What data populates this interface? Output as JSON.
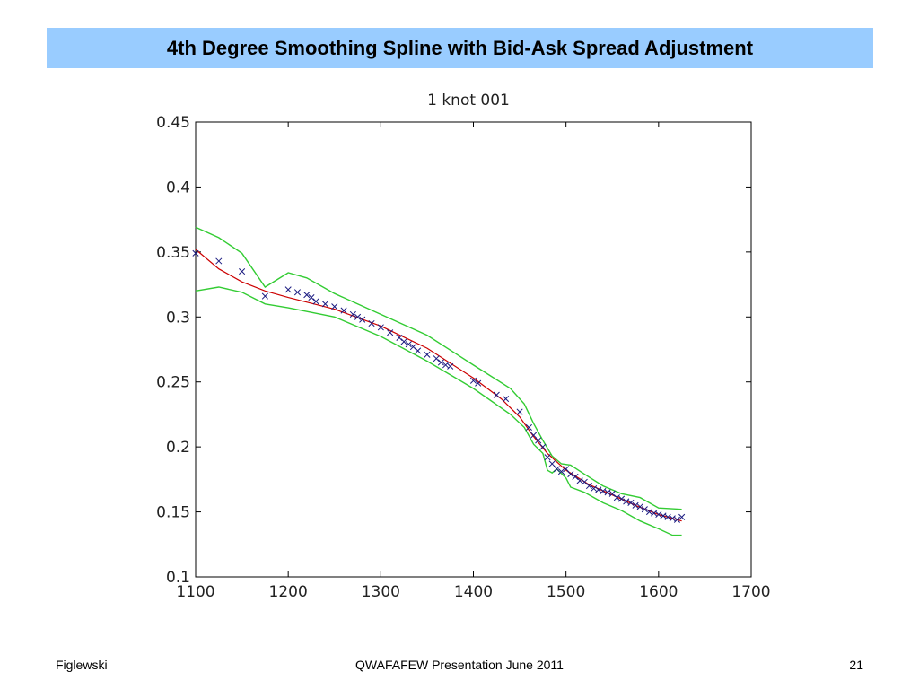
{
  "slide": {
    "title": "4th Degree Smoothing Spline with Bid-Ask Spread Adjustment",
    "footer_left": "Figlewski",
    "footer_center": "QWAFAFEW Presentation  June 2011",
    "footer_right": "21"
  },
  "colors": {
    "banner": "#99ccff",
    "fit": "#cc0000",
    "bands": "#33cc33",
    "markers": "#1a1a80"
  },
  "chart_data": {
    "type": "scatter",
    "title": "1 knot 001",
    "xlabel": "",
    "ylabel": "",
    "xlim": [
      1100,
      1700
    ],
    "ylim": [
      0.1,
      0.45
    ],
    "grid": false,
    "xticks": [
      "1100",
      "1200",
      "1300",
      "1400",
      "1500",
      "1600",
      "1700"
    ],
    "yticks": [
      "0.1",
      "0.15",
      "0.2",
      "0.25",
      "0.3",
      "0.35",
      "0.4",
      "0.45"
    ],
    "series": [
      {
        "kind": "markers",
        "marker": "x",
        "x": [
          1100,
          1125,
          1150,
          1175,
          1200,
          1210,
          1220,
          1225,
          1230,
          1240,
          1250,
          1260,
          1270,
          1275,
          1280,
          1290,
          1300,
          1310,
          1320,
          1325,
          1330,
          1335,
          1340,
          1350,
          1360,
          1365,
          1370,
          1375,
          1400,
          1405,
          1425,
          1435,
          1450,
          1460,
          1465,
          1470,
          1475,
          1480,
          1485,
          1490,
          1495,
          1500,
          1505,
          1510,
          1515,
          1520,
          1525,
          1530,
          1535,
          1540,
          1545,
          1550,
          1555,
          1560,
          1565,
          1570,
          1575,
          1580,
          1585,
          1590,
          1595,
          1600,
          1605,
          1610,
          1615,
          1620,
          1625
        ],
        "y": [
          0.349,
          0.343,
          0.335,
          0.316,
          0.321,
          0.319,
          0.317,
          0.315,
          0.312,
          0.31,
          0.308,
          0.305,
          0.302,
          0.3,
          0.298,
          0.295,
          0.292,
          0.288,
          0.284,
          0.281,
          0.279,
          0.277,
          0.274,
          0.271,
          0.268,
          0.265,
          0.263,
          0.262,
          0.251,
          0.249,
          0.24,
          0.237,
          0.227,
          0.215,
          0.209,
          0.205,
          0.2,
          0.192,
          0.187,
          0.183,
          0.181,
          0.183,
          0.179,
          0.177,
          0.174,
          0.173,
          0.17,
          0.168,
          0.167,
          0.166,
          0.165,
          0.164,
          0.161,
          0.16,
          0.158,
          0.157,
          0.155,
          0.154,
          0.152,
          0.15,
          0.149,
          0.148,
          0.147,
          0.146,
          0.145,
          0.144,
          0.146
        ]
      },
      {
        "kind": "line",
        "role": "fit",
        "x": [
          1100,
          1125,
          1150,
          1175,
          1200,
          1250,
          1300,
          1350,
          1400,
          1430,
          1450,
          1465,
          1480,
          1500,
          1525,
          1550,
          1575,
          1600,
          1625
        ],
        "y": [
          0.352,
          0.337,
          0.327,
          0.32,
          0.315,
          0.306,
          0.293,
          0.276,
          0.253,
          0.237,
          0.223,
          0.208,
          0.195,
          0.182,
          0.171,
          0.163,
          0.155,
          0.148,
          0.143
        ]
      },
      {
        "kind": "line",
        "role": "upper-band",
        "x": [
          1100,
          1125,
          1150,
          1175,
          1200,
          1220,
          1250,
          1300,
          1350,
          1400,
          1440,
          1455,
          1465,
          1475,
          1485,
          1495,
          1505,
          1520,
          1540,
          1560,
          1580,
          1600,
          1625
        ],
        "y": [
          0.369,
          0.361,
          0.349,
          0.323,
          0.334,
          0.33,
          0.318,
          0.302,
          0.286,
          0.263,
          0.245,
          0.233,
          0.218,
          0.205,
          0.193,
          0.187,
          0.186,
          0.179,
          0.17,
          0.164,
          0.161,
          0.153,
          0.152
        ]
      },
      {
        "kind": "line",
        "role": "lower-band",
        "x": [
          1100,
          1125,
          1150,
          1175,
          1200,
          1250,
          1300,
          1350,
          1400,
          1440,
          1455,
          1465,
          1475,
          1480,
          1485,
          1490,
          1500,
          1505,
          1520,
          1540,
          1560,
          1580,
          1600,
          1615,
          1625
        ],
        "y": [
          0.32,
          0.323,
          0.319,
          0.31,
          0.307,
          0.3,
          0.285,
          0.266,
          0.245,
          0.225,
          0.215,
          0.202,
          0.195,
          0.182,
          0.18,
          0.183,
          0.176,
          0.169,
          0.165,
          0.157,
          0.151,
          0.143,
          0.137,
          0.132,
          0.132
        ]
      }
    ]
  }
}
